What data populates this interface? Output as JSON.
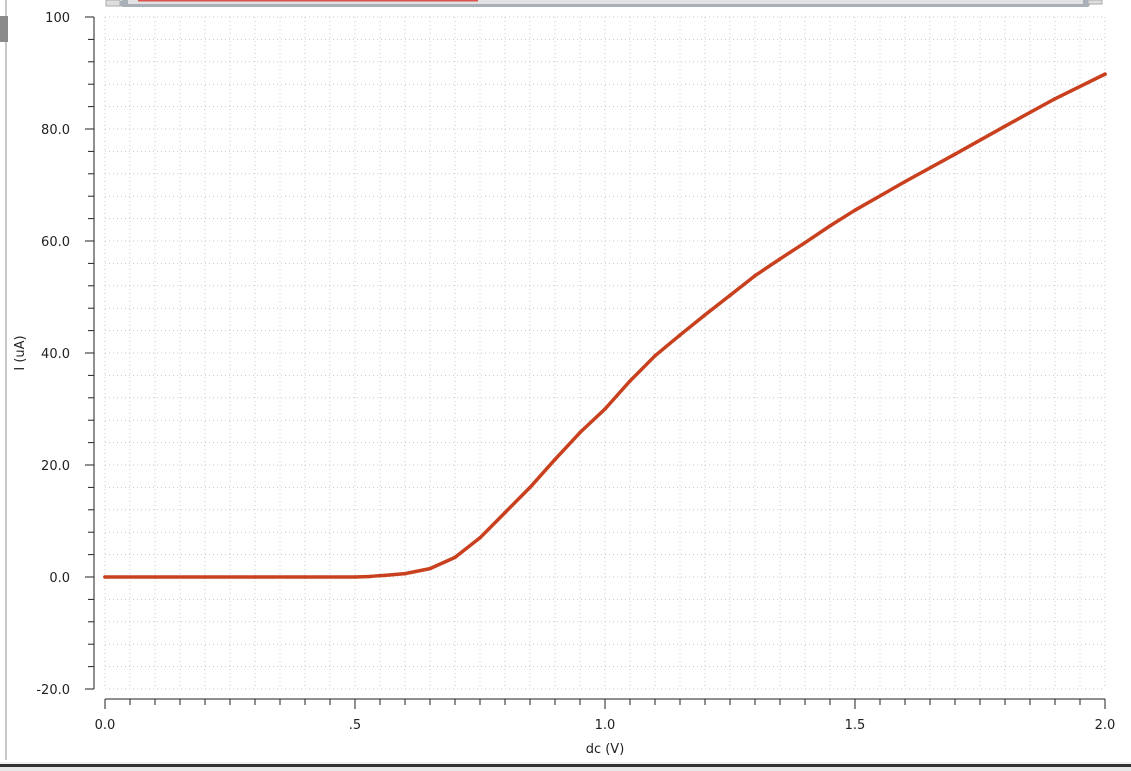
{
  "chart_data": {
    "type": "line",
    "title": "",
    "xlabel": "dc (V)",
    "ylabel": "I (uA)",
    "xlim": [
      0,
      2.0
    ],
    "ylim": [
      -20,
      100
    ],
    "x_ticks": [
      "0.0",
      ".5",
      "1.0",
      "1.5",
      "2.0"
    ],
    "x_tick_values": [
      0,
      0.5,
      1.0,
      1.5,
      2.0
    ],
    "y_ticks": [
      "-20.0",
      "0.0",
      "20.0",
      "40.0",
      "60.0",
      "80.0",
      "100"
    ],
    "y_tick_values": [
      -20,
      0,
      20,
      40,
      60,
      80,
      100
    ],
    "grid": true,
    "series": [
      {
        "color": "#c8401e",
        "x": [
          0,
          0.1,
          0.2,
          0.3,
          0.4,
          0.5,
          0.53,
          0.56,
          0.6,
          0.65,
          0.7,
          0.75,
          0.8,
          0.85,
          0.9,
          0.95,
          1.0,
          1.05,
          1.1,
          1.15,
          1.2,
          1.25,
          1.3,
          1.35,
          1.4,
          1.45,
          1.5,
          1.6,
          1.7,
          1.8,
          1.9,
          2.0
        ],
        "y": [
          0,
          0,
          0,
          0,
          0,
          0,
          0.1,
          0.3,
          0.6,
          1.5,
          3.5,
          7,
          11.5,
          16,
          21,
          25.8,
          30,
          35,
          39.5,
          43.2,
          46.8,
          50.3,
          53.8,
          56.8,
          59.7,
          62.7,
          65.5,
          70.6,
          75.5,
          80.5,
          85.4,
          89.8
        ]
      }
    ]
  },
  "colors": {
    "curve": "#c8401e",
    "grid": "#c8c8c8",
    "axis": "#222222"
  }
}
